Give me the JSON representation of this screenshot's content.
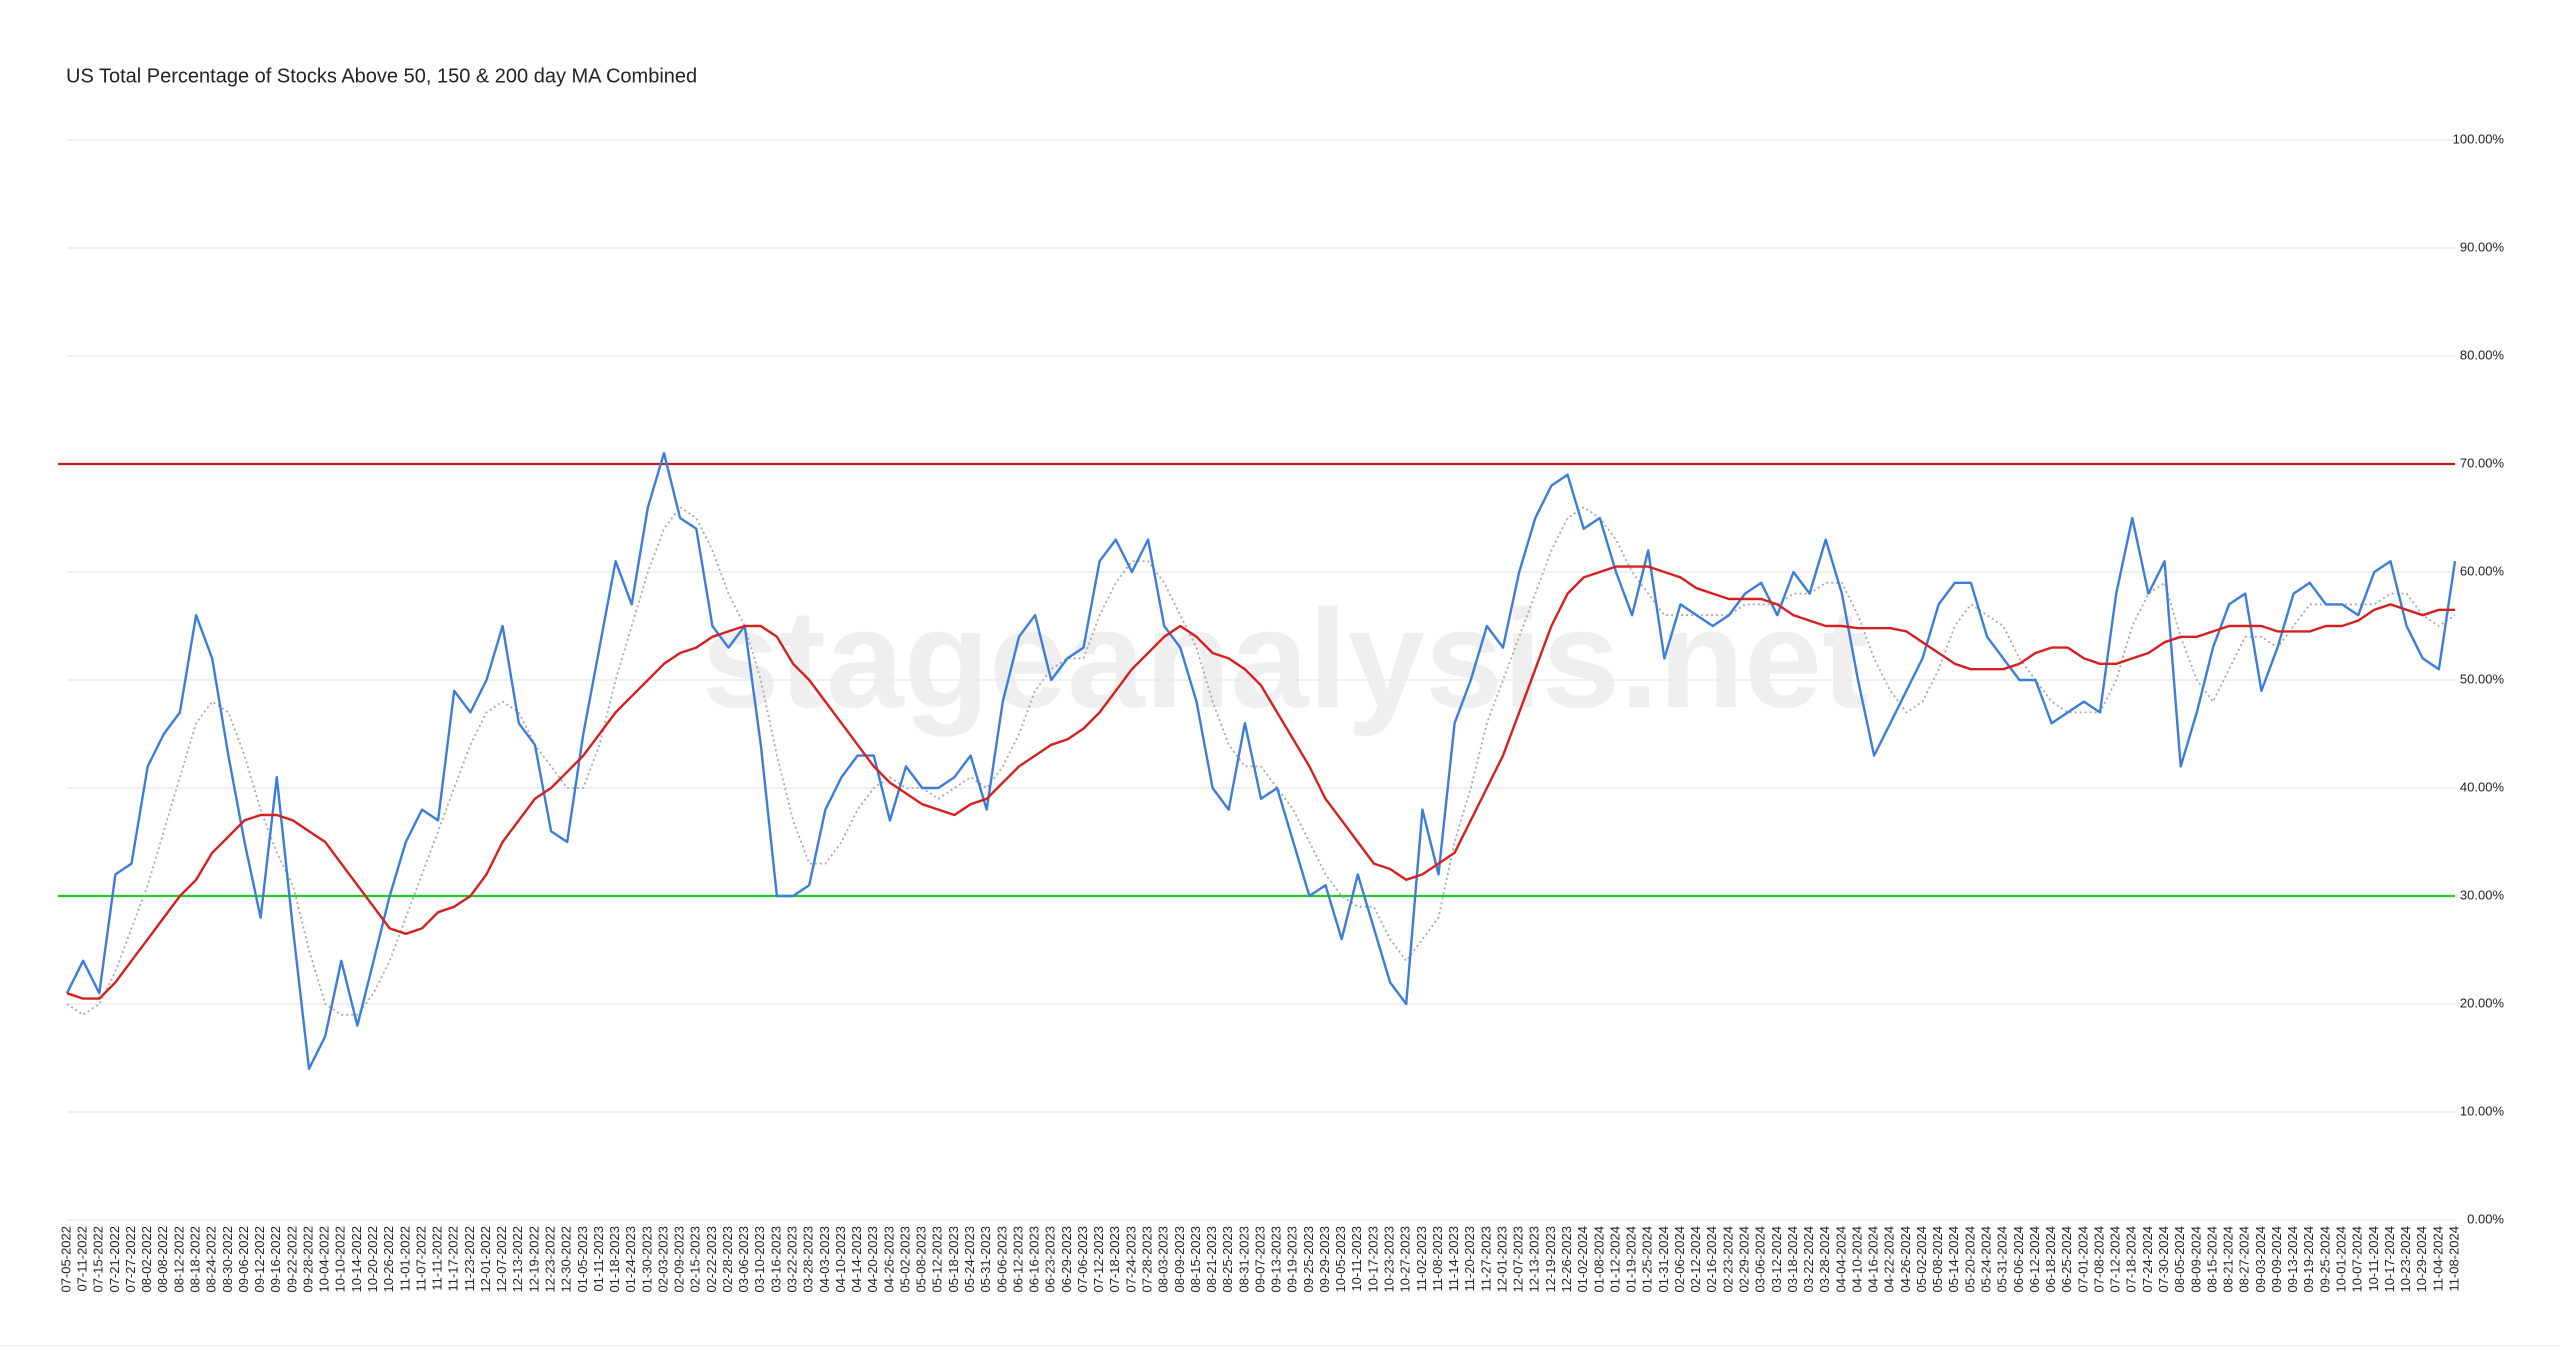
{
  "chart_data": {
    "type": "line",
    "title": "US Total Percentage of Stocks Above 50, 150 & 200 day MA Combined",
    "watermark": "stageanalysis.net",
    "categories": [
      "07-05-2022",
      "07-11-2022",
      "07-15-2022",
      "07-21-2022",
      "07-27-2022",
      "08-02-2022",
      "08-08-2022",
      "08-12-2022",
      "08-18-2022",
      "08-24-2022",
      "08-30-2022",
      "09-06-2022",
      "09-12-2022",
      "09-16-2022",
      "09-22-2022",
      "09-28-2022",
      "10-04-2022",
      "10-10-2022",
      "10-14-2022",
      "10-20-2022",
      "10-26-2022",
      "11-01-2022",
      "11-07-2022",
      "11-11-2022",
      "11-17-2022",
      "11-23-2022",
      "12-01-2022",
      "12-07-2022",
      "12-13-2022",
      "12-19-2022",
      "12-23-2022",
      "12-30-2022",
      "01-05-2023",
      "01-11-2023",
      "01-18-2023",
      "01-24-2023",
      "01-30-2023",
      "02-03-2023",
      "02-09-2023",
      "02-15-2023",
      "02-22-2023",
      "02-28-2023",
      "03-06-2023",
      "03-10-2023",
      "03-16-2023",
      "03-22-2023",
      "03-28-2023",
      "04-03-2023",
      "04-10-2023",
      "04-14-2023",
      "04-20-2023",
      "04-26-2023",
      "05-02-2023",
      "05-08-2023",
      "05-12-2023",
      "05-18-2023",
      "05-24-2023",
      "05-31-2023",
      "06-06-2023",
      "06-12-2023",
      "06-16-2023",
      "06-23-2023",
      "06-29-2023",
      "07-06-2023",
      "07-12-2023",
      "07-18-2023",
      "07-24-2023",
      "07-28-2023",
      "08-03-2023",
      "08-09-2023",
      "08-15-2023",
      "08-21-2023",
      "08-25-2023",
      "08-31-2023",
      "09-07-2023",
      "09-13-2023",
      "09-19-2023",
      "09-25-2023",
      "09-29-2023",
      "10-05-2023",
      "10-11-2023",
      "10-17-2023",
      "10-23-2023",
      "10-27-2023",
      "11-02-2023",
      "11-08-2023",
      "11-14-2023",
      "11-20-2023",
      "11-27-2023",
      "12-01-2023",
      "12-07-2023",
      "12-13-2023",
      "12-19-2023",
      "12-26-2023",
      "01-02-2024",
      "01-08-2024",
      "01-12-2024",
      "01-19-2024",
      "01-25-2024",
      "01-31-2024",
      "02-06-2024",
      "02-12-2024",
      "02-16-2024",
      "02-23-2024",
      "02-29-2024",
      "03-06-2024",
      "03-12-2024",
      "03-18-2024",
      "03-22-2024",
      "03-28-2024",
      "04-04-2024",
      "04-10-2024",
      "04-16-2024",
      "04-22-2024",
      "04-26-2024",
      "05-02-2024",
      "05-08-2024",
      "05-14-2024",
      "05-20-2024",
      "05-24-2024",
      "05-31-2024",
      "06-06-2024",
      "06-12-2024",
      "06-18-2024",
      "06-25-2024",
      "07-01-2024",
      "07-08-2024",
      "07-12-2024",
      "07-18-2024",
      "07-24-2024",
      "07-30-2024",
      "08-05-2024",
      "08-09-2024",
      "08-15-2024",
      "08-21-2024",
      "08-27-2024",
      "09-03-2024",
      "09-09-2024",
      "09-13-2024",
      "09-19-2024",
      "09-25-2024",
      "10-01-2024",
      "10-07-2024",
      "10-11-2024",
      "10-17-2024",
      "10-23-2024",
      "10-29-2024",
      "11-04-2024",
      "11-08-2024"
    ],
    "series": [
      {
        "color": "#3b7ddd",
        "style": "solid",
        "values": [
          21,
          24,
          21,
          32,
          33,
          42,
          45,
          47,
          56,
          52,
          43,
          35,
          28,
          41,
          27,
          14,
          17,
          24,
          18,
          24,
          30,
          35,
          38,
          37,
          49,
          47,
          50,
          55,
          46,
          44,
          36,
          35,
          45,
          53,
          61,
          57,
          66,
          71,
          65,
          64,
          55,
          53,
          55,
          44,
          30,
          30,
          31,
          38,
          41,
          43,
          43,
          37,
          42,
          40,
          40,
          41,
          43,
          38,
          48,
          54,
          56,
          50,
          52,
          53,
          61,
          63,
          60,
          63,
          55,
          53,
          48,
          40,
          38,
          46,
          39,
          40,
          35,
          30,
          31,
          26,
          32,
          27,
          22,
          20,
          38,
          32,
          46,
          50,
          55,
          53,
          60,
          65,
          68,
          69,
          64,
          65,
          60,
          56,
          62,
          52,
          57,
          56,
          55,
          56,
          58,
          59,
          56,
          60,
          58,
          63,
          58,
          50,
          43,
          46,
          49,
          52,
          57,
          59,
          59,
          54,
          52,
          50,
          50,
          46,
          47,
          48,
          47,
          58,
          65,
          58,
          61,
          42,
          47,
          53,
          57,
          58,
          49,
          53,
          58,
          59,
          57,
          57,
          56,
          60,
          61,
          55,
          52,
          51,
          61
        ]
      },
      {
        "color": "#a8a8a8",
        "style": "dotted",
        "values": [
          20,
          19,
          20,
          23,
          27,
          31,
          36,
          41,
          46,
          48,
          47,
          43,
          38,
          34,
          31,
          25,
          20,
          19,
          19,
          21,
          24,
          28,
          32,
          36,
          40,
          44,
          47,
          48,
          47,
          44,
          42,
          40,
          40,
          44,
          50,
          55,
          60,
          64,
          66,
          65,
          62,
          58,
          55,
          50,
          43,
          37,
          33,
          33,
          35,
          38,
          40,
          41,
          40,
          40,
          39,
          40,
          41,
          40,
          42,
          45,
          49,
          51,
          52,
          52,
          56,
          59,
          61,
          61,
          59,
          56,
          53,
          48,
          44,
          42,
          42,
          40,
          38,
          35,
          32,
          30,
          29,
          29,
          26,
          24,
          26,
          28,
          35,
          40,
          46,
          50,
          54,
          58,
          62,
          65,
          66,
          65,
          63,
          60,
          58,
          56,
          56,
          56,
          56,
          56,
          57,
          57,
          57,
          58,
          58,
          59,
          59,
          56,
          52,
          49,
          47,
          48,
          51,
          55,
          57,
          56,
          55,
          52,
          50,
          48,
          47,
          47,
          47,
          50,
          55,
          58,
          59,
          54,
          50,
          48,
          51,
          54,
          54,
          53,
          55,
          57,
          57,
          57,
          57,
          57,
          58,
          58,
          56,
          55,
          56
        ]
      },
      {
        "color": "#d62020",
        "style": "solid",
        "values": [
          21,
          20.5,
          20.5,
          22,
          24,
          26,
          28,
          30,
          31.5,
          34,
          35.5,
          37,
          37.5,
          37.5,
          37,
          36,
          35,
          33,
          31,
          29,
          27,
          26.5,
          27,
          28.5,
          29,
          30,
          32,
          35,
          37,
          39,
          40,
          41.5,
          43,
          45,
          47,
          48.5,
          50,
          51.5,
          52.5,
          53,
          54,
          54.5,
          55,
          55,
          54,
          51.5,
          50,
          48,
          46,
          44,
          42,
          40.5,
          39.5,
          38.5,
          38,
          37.5,
          38.5,
          39,
          40.5,
          42,
          43,
          44,
          44.5,
          45.5,
          47,
          49,
          51,
          52.5,
          54,
          55,
          54,
          52.5,
          52,
          51,
          49.5,
          47,
          44.5,
          42,
          39,
          37,
          35,
          33,
          32.5,
          31.5,
          32,
          33,
          34,
          37,
          40,
          43,
          47,
          51,
          55,
          58,
          59.5,
          60,
          60.5,
          60.5,
          60.5,
          60,
          59.5,
          58.5,
          58,
          57.5,
          57.5,
          57.5,
          57,
          56,
          55.5,
          55,
          55,
          54.8,
          54.8,
          54.8,
          54.5,
          53.5,
          52.5,
          51.5,
          51,
          51,
          51,
          51.5,
          52.5,
          53,
          53,
          52,
          51.5,
          51.5,
          52,
          52.5,
          53.5,
          54,
          54,
          54.5,
          55,
          55,
          55,
          54.5,
          54.5,
          54.5,
          55,
          55,
          55.5,
          56.5,
          57,
          56.5,
          56,
          56.5,
          56.5
        ]
      }
    ],
    "reference_lines": [
      {
        "value": 70,
        "color": "#c8171e"
      },
      {
        "value": 30,
        "color": "#22cc22"
      }
    ],
    "ylim": [
      0,
      100
    ],
    "yticks": [
      {
        "value": 0,
        "label": "0.00%"
      },
      {
        "value": 10,
        "label": "10.00%"
      },
      {
        "value": 20,
        "label": "20.00%"
      },
      {
        "value": 30,
        "label": "30.00%"
      },
      {
        "value": 40,
        "label": "40.00%"
      },
      {
        "value": 50,
        "label": "50.00%"
      },
      {
        "value": 60,
        "label": "60.00%"
      },
      {
        "value": 70,
        "label": "70.00%"
      },
      {
        "value": 80,
        "label": "80.00%"
      },
      {
        "value": 90,
        "label": "90.00%"
      },
      {
        "value": 100,
        "label": "100.00%"
      }
    ],
    "grid": true
  }
}
